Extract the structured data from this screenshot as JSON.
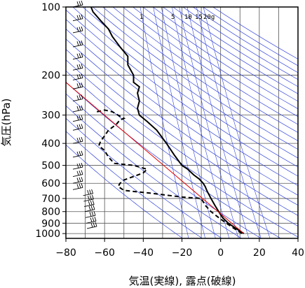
{
  "chart_data": {
    "type": "line",
    "xlabel": "気温(実線), 露点(破線)",
    "ylabel": "気圧(hPa)",
    "xlim": [
      -80,
      40
    ],
    "ylim": [
      1050,
      100
    ],
    "yscale": "log",
    "x_ticks": [
      -80,
      -60,
      -40,
      -20,
      0,
      20,
      40
    ],
    "x_tick_labels": [
      "−80",
      "−60",
      "−40",
      "−20",
      "0",
      "20",
      "40"
    ],
    "y_ticks": [
      100,
      200,
      300,
      400,
      500,
      600,
      700,
      800,
      900,
      1000
    ],
    "y_tick_labels": [
      "100",
      "200",
      "300",
      "400",
      "500",
      "600",
      "700",
      "800",
      "900",
      "1000"
    ],
    "mixing_ratio_labels": [
      "1",
      "5",
      "10",
      "15",
      "20g"
    ],
    "series": [
      {
        "style": "solid",
        "color": "#000000",
        "points": [
          [
            12,
            1000
          ],
          [
            8,
            950
          ],
          [
            4,
            900
          ],
          [
            1,
            850
          ],
          [
            -1,
            800
          ],
          [
            -3,
            750
          ],
          [
            -5,
            700
          ],
          [
            -7,
            650
          ],
          [
            -8,
            620
          ],
          [
            -9,
            600
          ],
          [
            -11,
            575
          ],
          [
            -14,
            550
          ],
          [
            -17,
            520
          ],
          [
            -20,
            500
          ],
          [
            -24,
            450
          ],
          [
            -28,
            400
          ],
          [
            -33,
            350
          ],
          [
            -38,
            320
          ],
          [
            -42,
            300
          ],
          [
            -43,
            280
          ],
          [
            -42,
            260
          ],
          [
            -43,
            240
          ],
          [
            -42,
            225
          ],
          [
            -45,
            215
          ],
          [
            -45,
            200
          ],
          [
            -48,
            180
          ],
          [
            -48,
            165
          ],
          [
            -52,
            150
          ],
          [
            -56,
            135
          ],
          [
            -58,
            125
          ],
          [
            -62,
            115
          ],
          [
            -66,
            105
          ],
          [
            -67,
            100
          ]
        ]
      },
      {
        "style": "dashed",
        "color": "#000000",
        "points": [
          [
            11,
            1000
          ],
          [
            7,
            950
          ],
          [
            3,
            900
          ],
          [
            -1,
            850
          ],
          [
            -5,
            800
          ],
          [
            -8,
            750
          ],
          [
            -10,
            700
          ],
          [
            -20,
            690
          ],
          [
            -35,
            665
          ],
          [
            -50,
            645
          ],
          [
            -53,
            620
          ],
          [
            -52,
            600
          ],
          [
            -50,
            580
          ],
          [
            -45,
            560
          ],
          [
            -40,
            540
          ],
          [
            -38,
            520
          ],
          [
            -45,
            500
          ],
          [
            -55,
            490
          ],
          [
            -58,
            460
          ],
          [
            -60,
            430
          ],
          [
            -63,
            410
          ],
          [
            -62,
            390
          ],
          [
            -60,
            370
          ],
          [
            -58,
            350
          ],
          [
            -54,
            330
          ],
          [
            -52,
            315
          ],
          [
            -50,
            310
          ],
          [
            -53,
            300
          ],
          [
            -56,
            290
          ],
          [
            -60,
            285
          ],
          [
            -64,
            290
          ]
        ]
      },
      {
        "style": "solid",
        "color": "#e00000",
        "points": [
          [
            12,
            1000
          ],
          [
            -80,
            215
          ]
        ]
      }
    ],
    "wind_barbs_present": true,
    "grid": true
  }
}
